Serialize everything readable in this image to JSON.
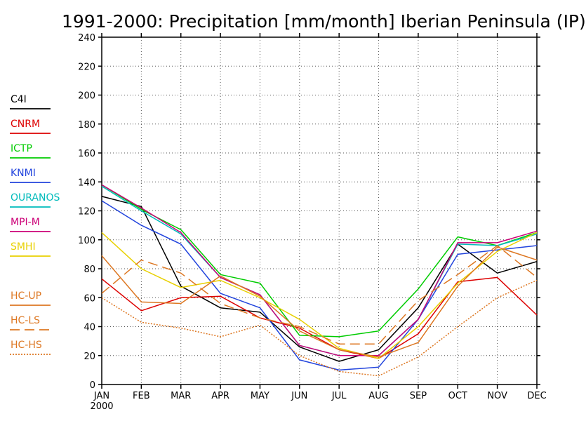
{
  "chart_data": {
    "type": "line",
    "title": "1991-2000: Precipitation [mm/month] Iberian Peninsula (IP)",
    "categories": [
      "JAN",
      "FEB",
      "MAR",
      "APR",
      "MAY",
      "JUN",
      "JUL",
      "AUG",
      "SEP",
      "OCT",
      "NOV",
      "DEC"
    ],
    "x_sublabel": "2000",
    "ylim": [
      0,
      240
    ],
    "yticks": [
      0,
      20,
      40,
      60,
      80,
      100,
      120,
      140,
      160,
      180,
      200,
      220,
      240
    ],
    "grid": true,
    "legend_position": "left",
    "series": [
      {
        "name": "C4I",
        "color": "#000000",
        "dash": "solid",
        "values": [
          130,
          123,
          68,
          53,
          50,
          26,
          16,
          24,
          53,
          97,
          77,
          85
        ]
      },
      {
        "name": "CNRM",
        "color": "#dd0000",
        "dash": "solid",
        "values": [
          73,
          51,
          60,
          61,
          46,
          39,
          24,
          18,
          35,
          71,
          74,
          48
        ]
      },
      {
        "name": "ICTP",
        "color": "#00cc00",
        "dash": "solid",
        "values": [
          138,
          121,
          107,
          76,
          70,
          34,
          33,
          37,
          66,
          102,
          96,
          105
        ]
      },
      {
        "name": "KNMI",
        "color": "#2244dd",
        "dash": "solid",
        "values": [
          127,
          110,
          97,
          63,
          53,
          17,
          10,
          12,
          45,
          90,
          93,
          96
        ]
      },
      {
        "name": "OURANOS",
        "color": "#00bbbb",
        "dash": "solid",
        "values": [
          137,
          120,
          104,
          74,
          62,
          27,
          20,
          20,
          45,
          97,
          96,
          104
        ]
      },
      {
        "name": "MPI-M",
        "color": "#cc0077",
        "dash": "solid",
        "values": [
          138,
          122,
          105,
          74,
          62,
          27,
          20,
          20,
          45,
          98,
          98,
          106
        ]
      },
      {
        "name": "SMHI",
        "color": "#e8d000",
        "dash": "solid",
        "values": [
          105,
          80,
          67,
          72,
          60,
          45,
          25,
          18,
          40,
          70,
          92,
          105
        ]
      },
      {
        "name": "HC-UP",
        "color": "#dd7722",
        "dash": "solid",
        "values": [
          89,
          57,
          56,
          75,
          61,
          37,
          24,
          19,
          29,
          68,
          95,
          86
        ]
      },
      {
        "name": "HC-LS",
        "color": "#dd7722",
        "dash": "longdash",
        "values": [
          63,
          86,
          77,
          56,
          46,
          40,
          28,
          28,
          58,
          76,
          96,
          74
        ]
      },
      {
        "name": "HC-HS",
        "color": "#dd7722",
        "dash": "dotted",
        "values": [
          60,
          43,
          39,
          33,
          41,
          20,
          9,
          6,
          19,
          40,
          60,
          72
        ]
      }
    ]
  }
}
